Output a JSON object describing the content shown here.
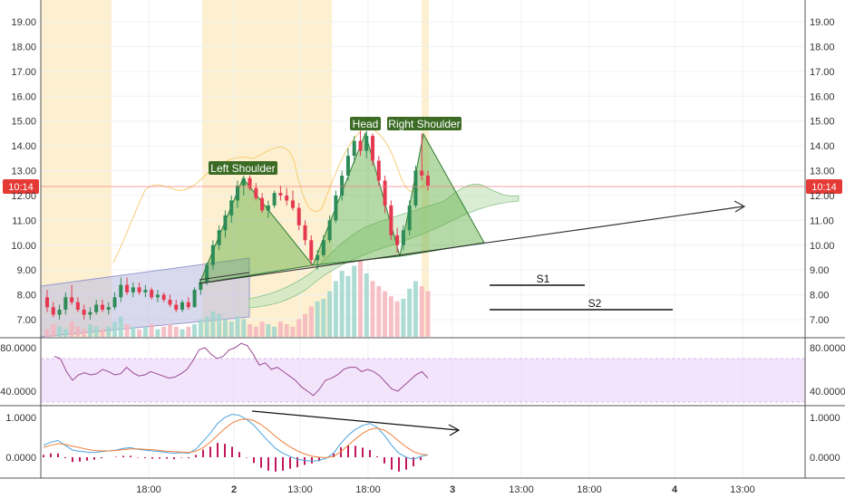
{
  "chart_data": {
    "type": "candlestick",
    "price_panel": {
      "y_ticks": [
        "19.00",
        "18.00",
        "17.00",
        "16.00",
        "15.00",
        "14.00",
        "13.00",
        "12.00",
        "11.00",
        "10.00",
        "9.00",
        "8.00",
        "7.00"
      ],
      "ylim": [
        6.3,
        19.6
      ],
      "last_price": 12.35,
      "last_price_tag": "10:14",
      "candles": [
        [
          7.9,
          8.2,
          7.3,
          7.5
        ],
        [
          7.5,
          7.7,
          7.1,
          7.2
        ],
        [
          7.2,
          7.6,
          7.0,
          7.4
        ],
        [
          7.4,
          8.1,
          7.2,
          7.9
        ],
        [
          7.9,
          8.4,
          7.6,
          7.7
        ],
        [
          7.7,
          7.9,
          7.3,
          7.4
        ],
        [
          7.4,
          7.6,
          7.0,
          7.2
        ],
        [
          7.2,
          7.5,
          7.0,
          7.3
        ],
        [
          7.3,
          7.8,
          7.2,
          7.6
        ],
        [
          7.6,
          7.8,
          7.3,
          7.4
        ],
        [
          7.4,
          7.7,
          7.2,
          7.5
        ],
        [
          7.5,
          8.1,
          7.4,
          7.9
        ],
        [
          7.9,
          8.7,
          7.7,
          8.4
        ],
        [
          8.4,
          8.7,
          8.0,
          8.1
        ],
        [
          8.1,
          8.5,
          7.9,
          8.3
        ],
        [
          8.3,
          8.5,
          8.0,
          8.1
        ],
        [
          8.1,
          8.4,
          7.9,
          8.2
        ],
        [
          8.2,
          8.3,
          7.8,
          7.9
        ],
        [
          7.9,
          8.2,
          7.7,
          8.0
        ],
        [
          8.0,
          8.1,
          7.7,
          7.8
        ],
        [
          7.8,
          8.0,
          7.5,
          7.6
        ],
        [
          7.6,
          7.8,
          7.3,
          7.4
        ],
        [
          7.4,
          7.8,
          7.3,
          7.7
        ],
        [
          7.7,
          7.9,
          7.4,
          7.5
        ],
        [
          7.5,
          8.3,
          7.5,
          8.2
        ],
        [
          8.2,
          8.6,
          8.0,
          8.5
        ],
        [
          8.5,
          9.3,
          8.4,
          9.2
        ],
        [
          9.2,
          10.2,
          9.0,
          10.0
        ],
        [
          10.0,
          10.8,
          9.8,
          10.6
        ],
        [
          10.6,
          11.4,
          10.3,
          11.2
        ],
        [
          11.2,
          12.0,
          10.9,
          11.8
        ],
        [
          11.8,
          12.6,
          11.5,
          12.4
        ],
        [
          12.4,
          12.8,
          12.0,
          12.7
        ],
        [
          12.7,
          12.8,
          12.2,
          12.3
        ],
        [
          12.3,
          12.5,
          11.8,
          11.9
        ],
        [
          11.9,
          12.1,
          11.3,
          11.4
        ],
        [
          11.4,
          11.8,
          11.1,
          11.6
        ],
        [
          11.6,
          12.2,
          11.5,
          12.1
        ],
        [
          12.1,
          12.4,
          11.8,
          12.0
        ],
        [
          12.0,
          12.3,
          11.6,
          11.8
        ],
        [
          11.8,
          12.2,
          11.4,
          11.5
        ],
        [
          11.5,
          11.7,
          10.6,
          10.8
        ],
        [
          10.8,
          11.0,
          10.0,
          10.2
        ],
        [
          10.2,
          10.4,
          9.2,
          9.4
        ],
        [
          9.4,
          9.8,
          9.0,
          9.6
        ],
        [
          9.6,
          10.4,
          9.5,
          10.2
        ],
        [
          10.2,
          11.2,
          10.1,
          11.0
        ],
        [
          11.0,
          12.2,
          10.9,
          12.0
        ],
        [
          12.0,
          13.0,
          11.8,
          12.8
        ],
        [
          12.8,
          13.9,
          12.6,
          13.6
        ],
        [
          13.6,
          14.4,
          13.3,
          14.2
        ],
        [
          14.2,
          14.6,
          13.6,
          13.8
        ],
        [
          13.8,
          14.6,
          13.5,
          14.4
        ],
        [
          14.4,
          14.5,
          13.2,
          13.4
        ],
        [
          13.4,
          13.6,
          12.4,
          12.6
        ],
        [
          12.6,
          12.8,
          11.3,
          11.6
        ],
        [
          11.6,
          11.8,
          10.2,
          10.4
        ],
        [
          10.4,
          10.7,
          9.7,
          10.0
        ],
        [
          10.0,
          10.8,
          9.8,
          10.6
        ],
        [
          10.6,
          11.8,
          10.4,
          11.6
        ],
        [
          11.6,
          13.2,
          11.5,
          13.0
        ],
        [
          13.0,
          14.5,
          12.6,
          12.8
        ],
        [
          12.8,
          13.0,
          12.2,
          12.4
        ]
      ],
      "volume_bars": [
        0.3,
        0.5,
        0.4,
        0.3,
        0.6,
        0.4,
        0.3,
        0.5,
        0.4,
        0.3,
        0.4,
        0.6,
        0.8,
        0.5,
        0.4,
        0.3,
        0.4,
        0.5,
        0.3,
        0.4,
        0.5,
        0.4,
        0.3,
        0.4,
        0.5,
        0.7,
        0.8,
        1.0,
        0.9,
        0.7,
        0.6,
        0.8,
        0.7,
        0.5,
        0.4,
        0.6,
        0.5,
        0.4,
        0.6,
        0.5,
        0.4,
        0.7,
        0.9,
        1.2,
        1.4,
        1.5,
        1.8,
        2.2,
        2.6,
        2.4,
        2.8,
        3.0,
        2.5,
        2.2,
        2.0,
        1.8,
        1.6,
        1.4,
        1.5,
        1.9,
        2.2,
        2.0,
        1.8
      ],
      "annotations": [
        {
          "text": "Left Shoulder"
        },
        {
          "text": "Head"
        },
        {
          "text": "Right Shoulder"
        }
      ],
      "levels": [
        {
          "name": "S1"
        },
        {
          "name": "S2"
        }
      ]
    },
    "rsi_panel": {
      "y_ticks": [
        "80.0000",
        "40.0000"
      ],
      "ylim": [
        20,
        95
      ],
      "values": [
        72,
        70,
        58,
        50,
        55,
        57,
        55,
        56,
        60,
        58,
        55,
        56,
        62,
        57,
        54,
        55,
        58,
        56,
        54,
        52,
        53,
        56,
        60,
        68,
        78,
        80,
        74,
        70,
        72,
        78,
        80,
        84,
        82,
        74,
        64,
        66,
        60,
        62,
        58,
        54,
        50,
        44,
        40,
        36,
        42,
        50,
        52,
        55,
        60,
        62,
        62,
        58,
        60,
        58,
        54,
        48,
        42,
        40,
        45,
        50,
        55,
        58,
        52
      ]
    },
    "macd_panel": {
      "y_ticks": [
        "1.0000",
        "0.0000"
      ],
      "ylim": [
        -0.45,
        1.15
      ],
      "macd": [
        0.3,
        0.38,
        0.42,
        0.3,
        0.18,
        0.15,
        0.13,
        0.12,
        0.14,
        0.16,
        0.18,
        0.22,
        0.24,
        0.2,
        0.18,
        0.16,
        0.14,
        0.12,
        0.1,
        0.12,
        0.1,
        0.2,
        0.4,
        0.6,
        0.85,
        1.0,
        1.08,
        1.05,
        0.95,
        0.8,
        0.6,
        0.4,
        0.22,
        0.1,
        0.02,
        -0.05,
        -0.08,
        -0.1,
        -0.08,
        -0.02,
        0.1,
        0.35,
        0.55,
        0.7,
        0.8,
        0.85,
        0.75,
        0.55,
        0.3,
        0.1,
        0.0,
        -0.05,
        0.02,
        0.06
      ],
      "signal": [
        0.25,
        0.3,
        0.34,
        0.32,
        0.28,
        0.24,
        0.2,
        0.17,
        0.16,
        0.16,
        0.17,
        0.19,
        0.21,
        0.21,
        0.2,
        0.19,
        0.17,
        0.15,
        0.14,
        0.13,
        0.12,
        0.15,
        0.24,
        0.38,
        0.55,
        0.72,
        0.86,
        0.94,
        0.96,
        0.92,
        0.82,
        0.68,
        0.52,
        0.38,
        0.26,
        0.16,
        0.08,
        0.03,
        0.0,
        -0.01,
        0.02,
        0.14,
        0.3,
        0.46,
        0.6,
        0.7,
        0.73,
        0.68,
        0.56,
        0.4,
        0.26,
        0.14,
        0.08,
        0.06
      ],
      "histogram": [
        0.05,
        0.08,
        0.08,
        -0.02,
        -0.1,
        -0.09,
        -0.07,
        -0.05,
        -0.02,
        0.0,
        0.01,
        0.03,
        0.03,
        -0.01,
        -0.02,
        -0.03,
        -0.03,
        -0.03,
        -0.04,
        -0.01,
        -0.02,
        0.05,
        0.16,
        0.22,
        0.3,
        0.28,
        0.22,
        0.11,
        -0.01,
        -0.12,
        -0.22,
        -0.28,
        -0.3,
        -0.28,
        -0.24,
        -0.21,
        -0.16,
        -0.13,
        -0.08,
        -0.01,
        0.08,
        0.21,
        0.25,
        0.24,
        0.2,
        0.15,
        0.02,
        -0.13,
        -0.26,
        -0.3,
        -0.26,
        -0.19,
        -0.06,
        0.0
      ]
    },
    "x_ticks": [
      "18:00",
      "2",
      "13:00",
      "18:00",
      "3",
      "13:00",
      "18:00",
      "4",
      "13:00"
    ]
  }
}
